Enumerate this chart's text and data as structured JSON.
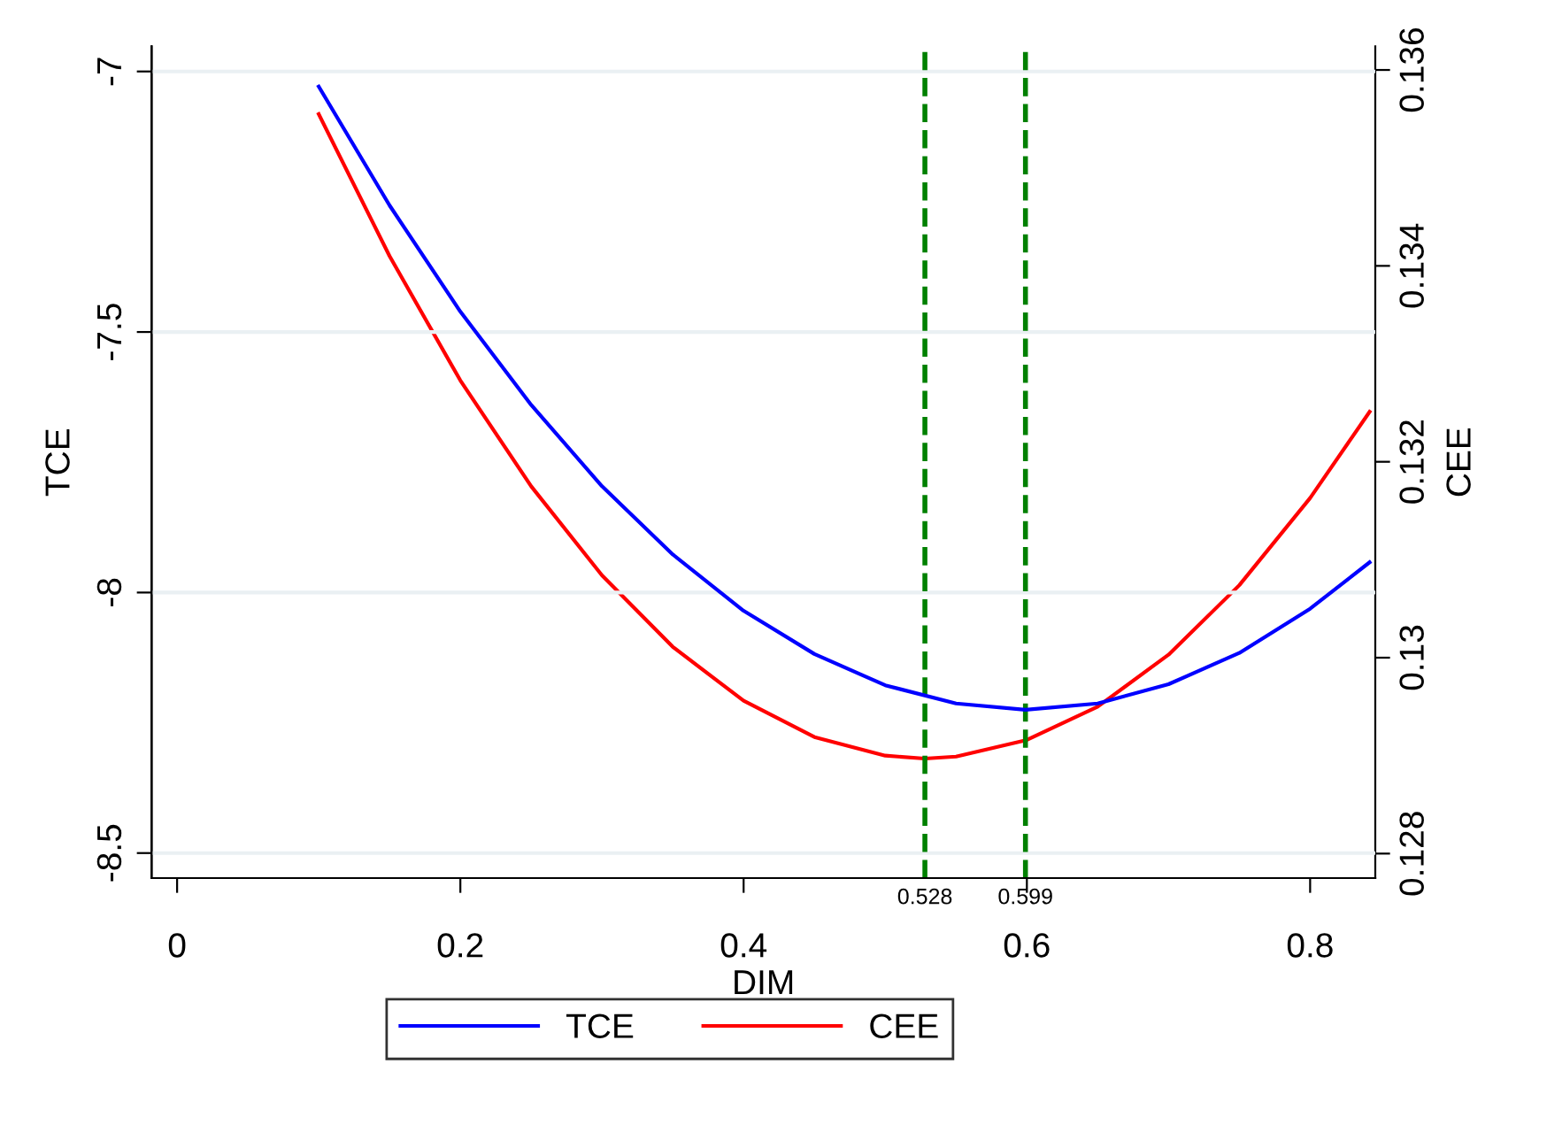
{
  "chart_data": {
    "type": "line",
    "xlabel": "DIM",
    "ylabel": "TCE",
    "y2label": "CEE",
    "xlim": [
      -0.018,
      0.846
    ],
    "xticks": [
      0,
      0.2,
      0.4,
      0.6,
      0.8
    ],
    "ylim": [
      -8.548,
      -6.952
    ],
    "yticks": [
      -7,
      -7.5,
      -8,
      -8.5
    ],
    "y2lim": [
      0.12775,
      0.13624
    ],
    "y2ticks": [
      0.128,
      0.13,
      0.132,
      0.134,
      0.136
    ],
    "grid": "y",
    "legend": "bottom",
    "line_style": "solid",
    "marker": "none",
    "series": [
      {
        "name": "TCE",
        "color": "#0000ff",
        "x": [
          0.1,
          0.15,
          0.2,
          0.25,
          0.3,
          0.35,
          0.4,
          0.45,
          0.5,
          0.55,
          0.599,
          0.65,
          0.7,
          0.75,
          0.8,
          0.842
        ],
        "values": [
          -7.029,
          -7.257,
          -7.461,
          -7.64,
          -7.796,
          -7.927,
          -8.035,
          -8.118,
          -8.178,
          -8.213,
          -8.225,
          -8.213,
          -8.176,
          -8.116,
          -8.031,
          -7.942
        ]
      },
      {
        "name": "CEE",
        "color": "#ff0000",
        "axis": "y2",
        "x": [
          0.1,
          0.15,
          0.2,
          0.25,
          0.3,
          0.35,
          0.4,
          0.45,
          0.5,
          0.528,
          0.55,
          0.6,
          0.65,
          0.7,
          0.75,
          0.8,
          0.842
        ],
        "values": [
          0.13555,
          0.1341,
          0.13283,
          0.13175,
          0.13084,
          0.13011,
          0.12956,
          0.12919,
          0.129,
          0.12897,
          0.12899,
          0.12916,
          0.1295,
          0.13003,
          0.13074,
          0.13163,
          0.13251
        ]
      }
    ],
    "ref_lines": [
      {
        "axis": "x",
        "value": 0.528,
        "label": "0.528",
        "color": "#008000",
        "line_style": "dashed"
      },
      {
        "axis": "x",
        "value": 0.599,
        "label": "0.599",
        "color": "#008000",
        "line_style": "dashed"
      }
    ]
  }
}
